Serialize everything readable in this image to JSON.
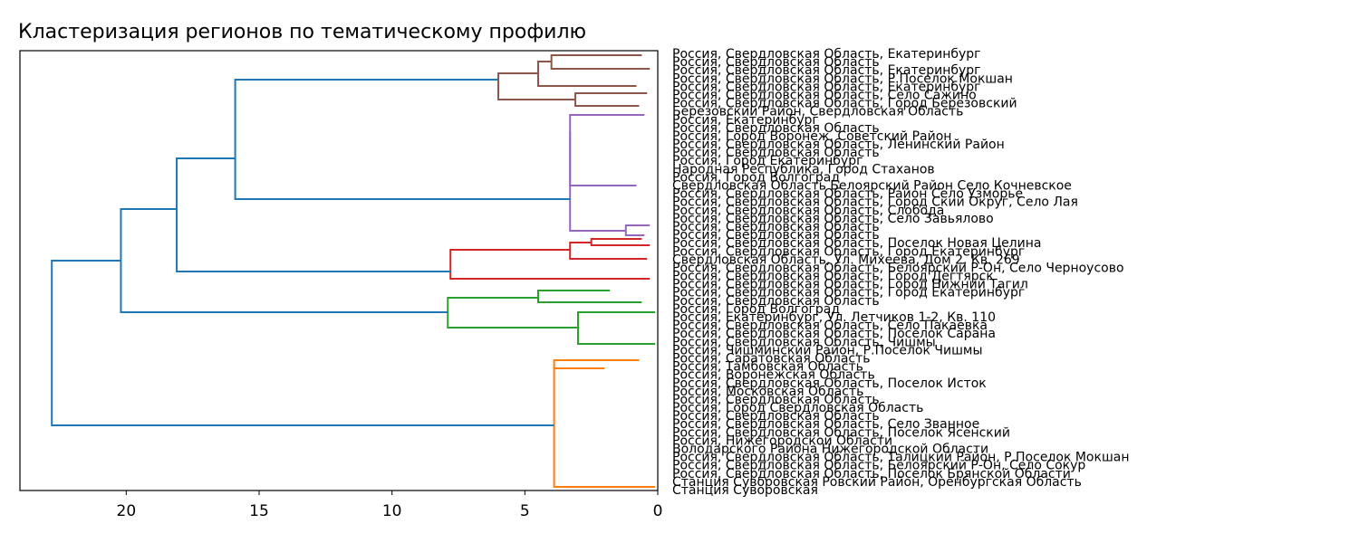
{
  "chart_data": {
    "type": "dendrogram",
    "orientation": "left",
    "title": "Кластеризация регионов по тематическому профилю",
    "xlabel": "",
    "ylabel": "",
    "xlim": [
      24,
      0
    ],
    "xticks": [
      20,
      15,
      10,
      5,
      0
    ],
    "xtick_labels": [
      "20",
      "15",
      "10",
      "5",
      "0"
    ],
    "grid": false,
    "colors": {
      "root": "#1f77b4",
      "brown": "#8c564b",
      "purple": "#9467bd",
      "red": "#d62728",
      "green": "#2ca02c",
      "orange": "#ff7f0e",
      "axes": "#000000"
    },
    "merge_heights": {
      "root": 22.8,
      "upper": 20.2,
      "upper_inner": 18.1,
      "brown_purple": 15.9,
      "brown": 6.0,
      "purple": 3.3,
      "red": 7.8,
      "green": 7.9,
      "orange": 3.9
    },
    "clusters": [
      {
        "name": "brown",
        "color": "#8c564b",
        "height": 6.0
      },
      {
        "name": "purple",
        "color": "#9467bd",
        "height": 3.3
      },
      {
        "name": "red",
        "color": "#d62728",
        "height": 7.8
      },
      {
        "name": "green",
        "color": "#2ca02c",
        "height": 7.9
      },
      {
        "name": "orange",
        "color": "#ff7f0e",
        "height": 3.9
      }
    ],
    "leaf_labels": [
      "Россия, Свердловская Область, Екатеринбург",
      "Россия, Свердловская Область",
      "Россия, Свердловская Область, Екатеринбург",
      "Россия, Свердловская Область, Р.Поселок Мокшан",
      "Россия, Свердловская Область, Екатеринбург",
      "Россия, Свердловская Область, Село Сажино",
      "Россия, Свердловская Область, Город Березовский",
      "Березовский Район, Свердловская Область",
      "Россия, Екатеринбург",
      "Россия, Свердловская Область",
      "Россия, Город Воронеж, Советский Район",
      "Россия, Свердловская Область, Ленинский Район",
      "Россия, Свердловская Область",
      "Россия, Город Екатеринбург",
      "Народная Республика, Город Стаханов",
      "Россия, Город Волгоград",
      "Свердловская Область Белоярский Район Село Кочневское",
      "Россия, Свердловская Область, Район Село Узморье",
      "Россия, Свердловская Область, Город Ский Округ, Село Лая",
      "Россия, Свердловская Область, Слобода",
      "Россия, Свердловская Область, Село Завьялово",
      "Россия, Свердловская Область",
      "Россия, Свердловская Область",
      "Россия, Свердловская Область, Поселок Новая Целина",
      "Россия, Свердловская Область, Город Екатеринбург",
      "Свердловская Область, Ул. Михеева, Дом 2, Кв. 269",
      "Россия, Свердловская Область, Белоярский Р-Он, Село Черноусово",
      "Россия, Свердловская Область, Город Дегтярск",
      "Россия, Свердловская Область, Город Нижний Тагил",
      "Россия, Свердловская Область, Город Екатеринбург",
      "Россия, Свердловская Область",
      "Россия, Город Волгоград",
      "Россия, Екатеринбург, Ул. Летчиков 1-2, Кв. 110",
      "Россия, Свердловская Область, Село Пакаевка",
      "Россия, Свердловская Область, Поселок Сарана",
      "Россия, Свердловская Область, Чишмы",
      "Россия, Чишминский Район, Р.Поселок Чишмы",
      "Россия, Саратовская Область",
      "Россия, Тамбовская Область",
      "Россия, Воронежская Область",
      "Россия, Свердловская Область, Поселок Исток",
      "Россия, Московская Область",
      "Россия, Свердловская Область",
      "Россия, Город Свердловская Область",
      "Россия, Свердловская Область",
      "Россия, Свердловская Область, Село Званное",
      "Россия, Свердловская Область, Поселок Ясенский",
      "Россия, Нижегородской Области",
      "Володарского Района Нижегородской Области",
      "Россия, Свердловская Область, Талицкий Район, Р.Поселок Мокшан",
      "Россия, Свердловская Область, Белоярский Р-Он, Село Сокур",
      "Россия, Свердловская Область, Поселок Брянской Области",
      "Станция Суворовская Ровский Район, Оренбургская Область",
      "Станция Суворовская"
    ],
    "visible_leaf_labels": [
      "Россия, Свердловская Область, Екатеринбург",
      "Березовский Район, Свердловская Область",
      "Народная Республика, Город Стаханов",
      "Свердловская Область Белоярский Район Село Кочневское",
      "Свердловская Область, Ул. Михеева, Дом 2, Кв. 269",
      "Россия, Свердловская Область, Белоярский Р-Он, Село Черноусово",
      "Россия, Свердловская Область, Город Екатеринбург",
      "Россия, Чишминский Район, Р.Поселок Чишмы",
      "Станция Суворовская"
    ]
  }
}
